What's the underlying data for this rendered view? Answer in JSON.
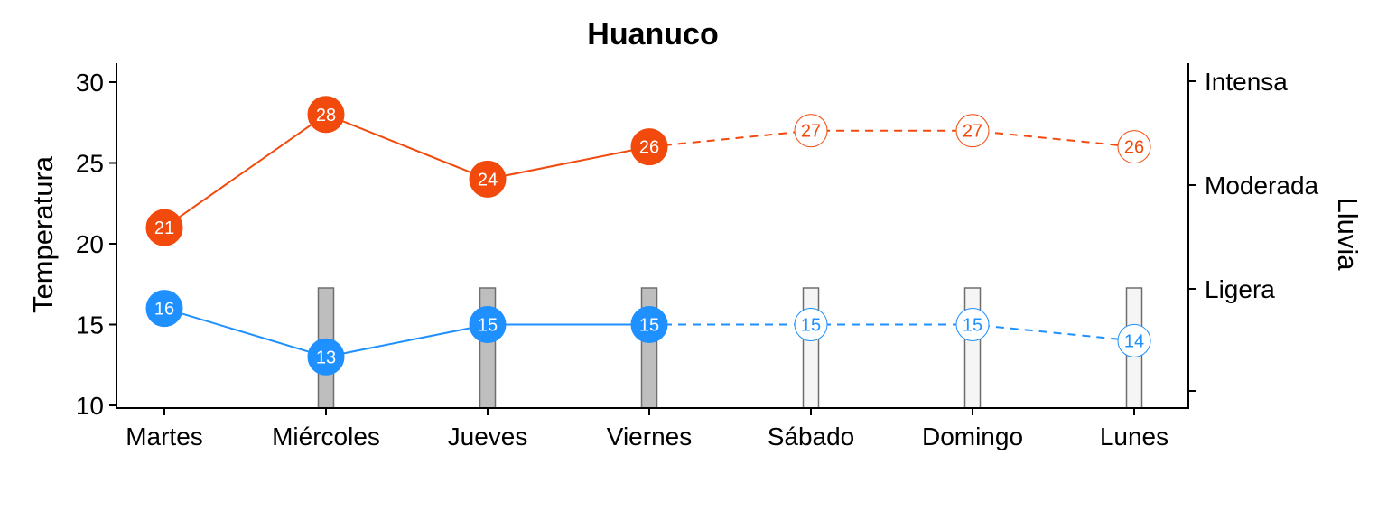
{
  "chart_data": {
    "type": "line",
    "title": "Huanuco",
    "ylabel": "Temperatura",
    "y2label": "Lluvia",
    "categories": [
      "Martes",
      "Miércoles",
      "Jueves",
      "Viernes",
      "Sábado",
      "Domingo",
      "Lunes"
    ],
    "ylim": [
      10,
      31
    ],
    "yticks": [
      10,
      15,
      20,
      25,
      30
    ],
    "y2ticks": [
      "",
      "Ligera",
      "Moderada",
      "Intensa"
    ],
    "observed_days": 4,
    "series": [
      {
        "values": [
          21,
          28,
          24,
          26,
          27,
          27,
          26
        ],
        "color": "#F24A0C"
      },
      {
        "values": [
          16,
          13,
          15,
          15,
          15,
          15,
          14
        ],
        "color": "#1E90FF"
      }
    ],
    "rain": {
      "level": [
        0,
        1,
        1,
        1,
        1,
        1,
        1
      ],
      "observed_fill": "#BEBEBE",
      "forecast_fill": "#F5F5F5",
      "stroke": "#6E6E6E"
    },
    "grid": false,
    "legend": "none"
  }
}
